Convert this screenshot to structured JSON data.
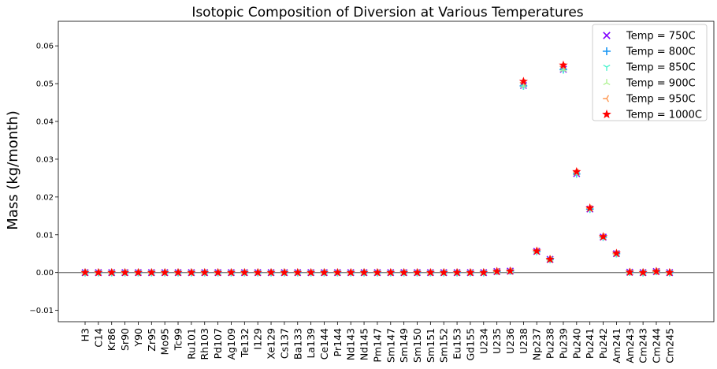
{
  "chart_data": {
    "type": "scatter",
    "title": "Isotopic Composition of Diversion at Various Temperatures",
    "xlabel": "",
    "ylabel": "Mass (kg/month)",
    "ylim": [
      -0.013,
      0.0665
    ],
    "yticks": [
      -0.01,
      0.0,
      0.01,
      0.02,
      0.03,
      0.04,
      0.05,
      0.06
    ],
    "ytick_labels": [
      "−0.01",
      "0.00",
      "0.01",
      "0.02",
      "0.03",
      "0.04",
      "0.05",
      "0.06"
    ],
    "zero_line": true,
    "grid": false,
    "legend_position": "top-right",
    "categories": [
      "H3",
      "C14",
      "Kr86",
      "Sr90",
      "Y90",
      "Zr95",
      "Mo95",
      "Tc99",
      "Ru101",
      "Rh103",
      "Pd107",
      "Ag109",
      "Te132",
      "I129",
      "Xe129",
      "Cs137",
      "Ba133",
      "La139",
      "Ce144",
      "Pr144",
      "Nd143",
      "Nd145",
      "Pm147",
      "Sm147",
      "Sm149",
      "Sm150",
      "Sm151",
      "Sm152",
      "Eu153",
      "Gd155",
      "U234",
      "U235",
      "U236",
      "U238",
      "Np237",
      "Pu238",
      "Pu239",
      "Pu240",
      "Pu241",
      "Pu242",
      "Am241",
      "Am243",
      "Cm243",
      "Cm244",
      "Cm245"
    ],
    "series": [
      {
        "name": "Temp = 750C",
        "color": "#8000ff",
        "marker": "x",
        "values": [
          0,
          0,
          0,
          0,
          0,
          0,
          0,
          0,
          0,
          0,
          0,
          0,
          0,
          0,
          0,
          0,
          0,
          0,
          0,
          0,
          0,
          0,
          0,
          0,
          0,
          0,
          0,
          0,
          0,
          0,
          0,
          0.0003,
          0.0004,
          0.0495,
          0.0056,
          0.0035,
          0.0538,
          0.0262,
          0.0168,
          0.0094,
          0.005,
          0.0001,
          0,
          0.0003,
          0
        ]
      },
      {
        "name": "Temp = 800C",
        "color": "#1996f3",
        "marker": "+",
        "values": [
          0,
          0,
          0,
          0,
          0,
          0,
          0,
          0,
          0,
          0,
          0,
          0,
          0,
          0,
          0,
          0,
          0,
          0,
          0,
          0,
          0,
          0,
          0,
          0,
          0,
          0,
          0,
          0,
          0,
          0,
          0,
          0.0003,
          0.0004,
          0.0494,
          0.0056,
          0.0035,
          0.0537,
          0.0261,
          0.0168,
          0.0094,
          0.005,
          0.0001,
          0,
          0.0003,
          0
        ]
      },
      {
        "name": "Temp = 850C",
        "color": "#4df3ce",
        "marker": "tri_down",
        "values": [
          0,
          0,
          0,
          0,
          0,
          0,
          0,
          0,
          0,
          0,
          0,
          0,
          0,
          0,
          0,
          0,
          0,
          0,
          0,
          0,
          0,
          0,
          0,
          0,
          0,
          0,
          0,
          0,
          0,
          0,
          0,
          0.0003,
          0.0004,
          0.0493,
          0.0056,
          0.0035,
          0.0536,
          0.0261,
          0.0167,
          0.0094,
          0.005,
          0.0001,
          0,
          0.0003,
          0
        ]
      },
      {
        "name": "Temp = 900C",
        "color": "#b2f396",
        "marker": "tri_up",
        "values": [
          0,
          0,
          0,
          0,
          0,
          0,
          0,
          0,
          0,
          0,
          0,
          0,
          0,
          0,
          0,
          0,
          0,
          0,
          0,
          0,
          0,
          0,
          0,
          0,
          0,
          0,
          0,
          0,
          0,
          0,
          0,
          0.0003,
          0.0004,
          0.0494,
          0.0056,
          0.0035,
          0.0537,
          0.0262,
          0.0168,
          0.0094,
          0.005,
          0.0001,
          0,
          0.0003,
          0
        ]
      },
      {
        "name": "Temp = 950C",
        "color": "#ff964f",
        "marker": "tri_left",
        "values": [
          0,
          0,
          0,
          0,
          0,
          0,
          0,
          0,
          0,
          0,
          0,
          0,
          0,
          0,
          0,
          0,
          0,
          0,
          0,
          0,
          0,
          0,
          0,
          0,
          0,
          0,
          0,
          0,
          0,
          0,
          0,
          0.0003,
          0.0004,
          0.0503,
          0.0057,
          0.0035,
          0.0546,
          0.0266,
          0.017,
          0.0095,
          0.005,
          0.0001,
          0,
          0.0003,
          0
        ]
      },
      {
        "name": "Temp = 1000C",
        "color": "#ff0000",
        "marker": "star",
        "values": [
          0,
          0,
          0,
          0,
          0,
          0,
          0,
          0,
          0,
          0,
          0,
          0,
          0,
          0,
          0,
          0,
          0,
          0,
          0,
          0,
          0,
          0,
          0,
          0,
          0,
          0,
          0,
          0,
          0,
          0,
          0,
          0.0003,
          0.0004,
          0.0506,
          0.0057,
          0.0035,
          0.0549,
          0.0267,
          0.0171,
          0.0095,
          0.0051,
          0.0001,
          0,
          0.0003,
          0
        ]
      }
    ]
  }
}
